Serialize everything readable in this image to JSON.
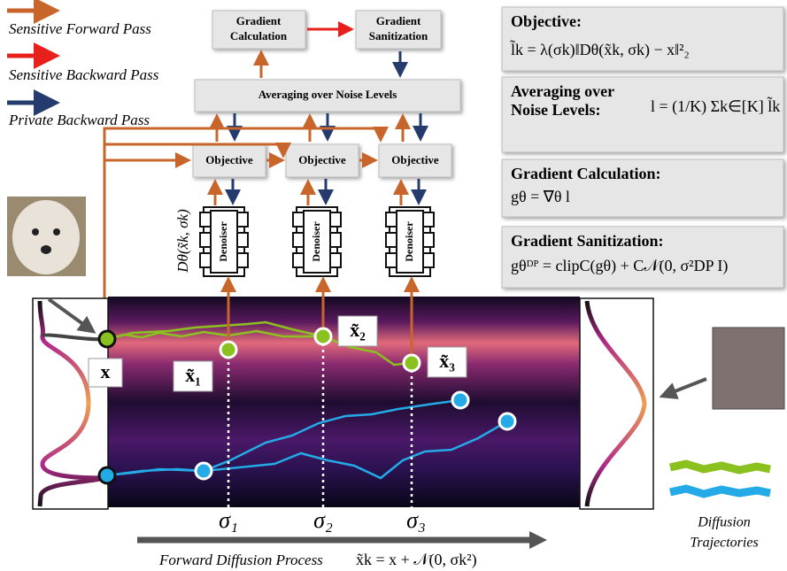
{
  "legend": [
    "Sensitive Forward Pass",
    "Sensitive Backward Pass",
    "Private Backward Pass"
  ],
  "boxes": {
    "gradient_calculation": [
      "Gradient",
      "Calculation"
    ],
    "gradient_sanitization": [
      "Gradient",
      "Sanitization"
    ],
    "averaging": "Averaging over Noise Levels",
    "objectives": [
      "Objective",
      "Objective",
      "Objective"
    ],
    "denoisers": [
      "Denoiser",
      "Denoiser",
      "Denoiser"
    ]
  },
  "denoiser_output": "Dθ(x̃k, σk)",
  "panels": [
    {
      "title": [
        "Objective:"
      ],
      "formula": "l̃k = λ(σk)‖Dθ(x̃k, σk) − x‖²₂"
    },
    {
      "title": [
        "Averaging over",
        "Noise Levels:"
      ],
      "formula": "l = (1/K) Σk∈[K] l̃k"
    },
    {
      "title": [
        "Gradient Calculation:"
      ],
      "formula": "gθ = ∇θ l"
    },
    {
      "title": [
        "Gradient Sanitization:"
      ],
      "formula": "gθᴰᴾ = clipC(gθ) + C𝒩(0, σ²DP I)"
    }
  ],
  "points": {
    "x": "x",
    "noisy": [
      "x̃₁",
      "x̃₂",
      "x̃₃"
    ]
  },
  "sigmas": [
    "σ₁",
    "σ₂",
    "σ₃"
  ],
  "forward_process": {
    "label": "Forward Diffusion Process",
    "formula": "x̃k = x + 𝒩(0, σk²)"
  },
  "trajectories_label": [
    "Diffusion",
    "Trajectories"
  ]
}
